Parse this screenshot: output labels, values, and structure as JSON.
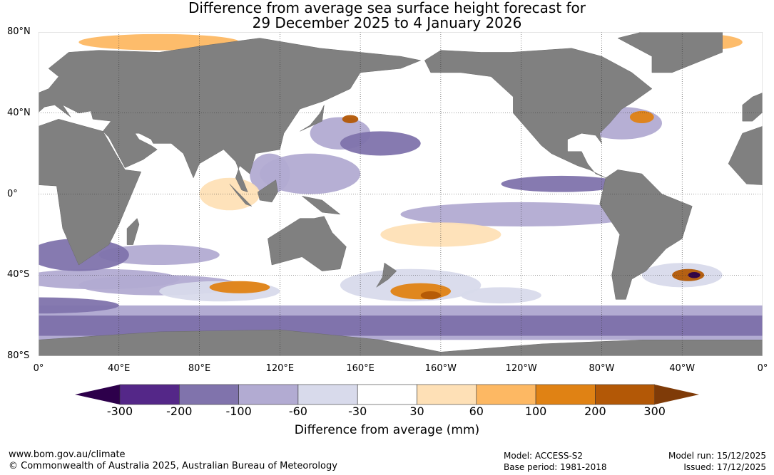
{
  "title": {
    "line1": "Difference from average sea surface height forecast for",
    "line2": "29 December 2025 to 4 January 2026"
  },
  "map": {
    "lat_labels": [
      {
        "text": "80°N",
        "lat": 80
      },
      {
        "text": "40°N",
        "lat": 40
      },
      {
        "text": "0°",
        "lat": 0
      },
      {
        "text": "40°S",
        "lat": -40
      },
      {
        "text": "80°S",
        "lat": -80
      }
    ],
    "lon_labels": [
      {
        "text": "0°",
        "lon": 0
      },
      {
        "text": "40°E",
        "lon": 40
      },
      {
        "text": "80°E",
        "lon": 80
      },
      {
        "text": "120°E",
        "lon": 120
      },
      {
        "text": "160°E",
        "lon": 160
      },
      {
        "text": "160°W",
        "lon": 200
      },
      {
        "text": "120°W",
        "lon": 240
      },
      {
        "text": "80°W",
        "lon": 280
      },
      {
        "text": "40°W",
        "lon": 320
      },
      {
        "text": "0°",
        "lon": 360
      }
    ],
    "land_color": "#808080"
  },
  "colorbar": {
    "ticks": [
      "-300",
      "-200",
      "-100",
      "-60",
      "-30",
      "30",
      "60",
      "100",
      "200",
      "300"
    ],
    "colors": [
      "#2d004b",
      "#542788",
      "#8073ac",
      "#b2abd2",
      "#d8daeb",
      "#ffffff",
      "#fee0b6",
      "#fdb863",
      "#e08214",
      "#b35806",
      "#7f3b08"
    ],
    "label": "Difference from average (mm)"
  },
  "footer": {
    "url": "www.bom.gov.au/climate",
    "copyright": "© Commonwealth of Australia 2025, Australian Bureau of Meteorology",
    "model": "Model: ACCESS-S2",
    "base_period": "Base period: 1981-2018",
    "model_run": "Model run: 15/12/2025",
    "issued": "Issued: 17/12/2025"
  }
}
